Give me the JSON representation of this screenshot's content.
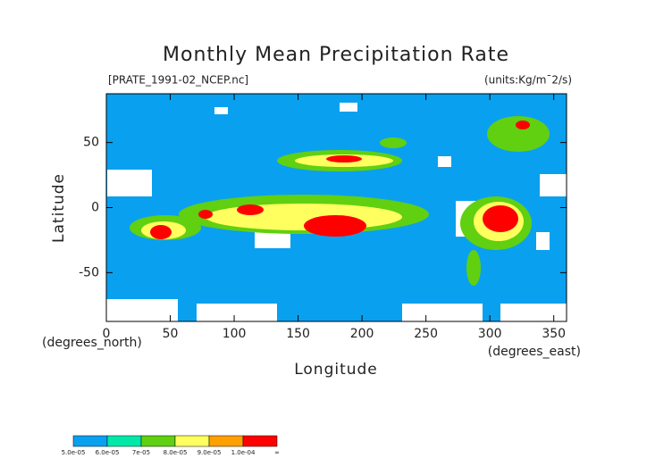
{
  "chart_data": {
    "type": "map",
    "title": "Monthly Mean Precipitation Rate",
    "subtitle_left": "[PRATE_1991-02_NCEP.nc]",
    "subtitle_right": "(units:Kg/m¯2/s)",
    "xlabel": "Longitude",
    "ylabel": "Latitude",
    "xunit": "(degrees_east)",
    "yunit": "(degrees_north)",
    "xlim": [
      0,
      360
    ],
    "ylim": [
      -87.5,
      87.5
    ],
    "xticks": [
      0,
      50,
      100,
      150,
      200,
      250,
      300,
      350
    ],
    "yticks": [
      -50,
      0,
      50
    ],
    "colorbar": {
      "labels": [
        "5.0e-05",
        "6.0e-05",
        "7e-05",
        "8.0e-05",
        "9.0e-05",
        "1.0e-04",
        "∞"
      ],
      "colors": [
        "#0aa0f0",
        "#00e8a8",
        "#60d010",
        "#ffff60",
        "#ffa000",
        "#ff0000"
      ]
    }
  }
}
